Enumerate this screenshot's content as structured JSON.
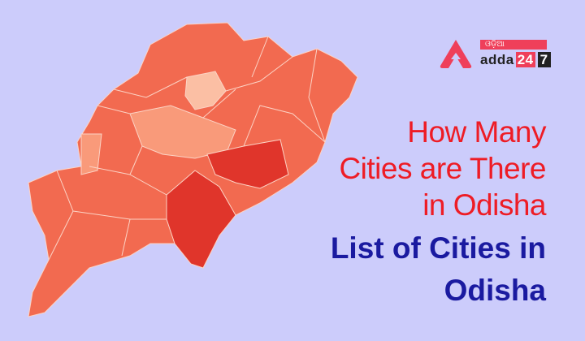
{
  "logo": {
    "odia_text": "ଓଡ଼ିଆ",
    "brand": "adda",
    "number_a": "24",
    "number_b": "7"
  },
  "headline": {
    "lines": [
      "How Many",
      "Cities are There",
      "in Odisha"
    ]
  },
  "subheadline": {
    "lines": [
      "List of Cities in",
      "Odisha"
    ]
  },
  "colors": {
    "background": "#ccccfb",
    "map_main": "#f26a50",
    "map_dark": "#e0352b",
    "map_light": "#f99a7a",
    "headline": "#ee1c25",
    "subheadline": "#1a1aa0",
    "brand": "#ef3f5a"
  }
}
